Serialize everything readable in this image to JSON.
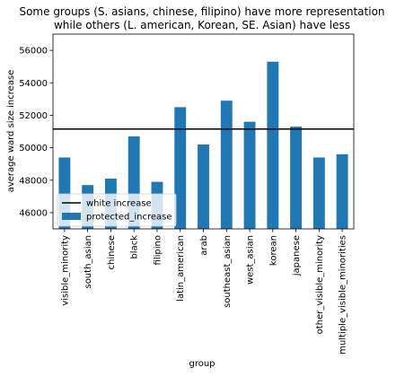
{
  "chart_data": {
    "type": "bar",
    "title_lines": [
      "Some groups (S. asians, chinese, filipino) have more representation",
      "while others (L. american, Korean, SE. Asian) have less"
    ],
    "xlabel": "group",
    "ylabel": "average ward size increase",
    "categories": [
      "visible_minority",
      "south_asian",
      "chinese",
      "black",
      "filipino",
      "latin_american",
      "arab",
      "southeast_asian",
      "west_asian",
      "korean",
      "japanese",
      "other_visible_minority",
      "multiple_visible_minorities"
    ],
    "series": [
      {
        "name": "protected_increase",
        "values": [
          49400,
          47700,
          48100,
          50700,
          47900,
          52500,
          50200,
          52900,
          51600,
          55300,
          51300,
          49400,
          49600
        ]
      }
    ],
    "reference_line": {
      "name": "white increase",
      "value": 51150
    },
    "ylim": [
      45000,
      57000
    ],
    "yticks": [
      46000,
      48000,
      50000,
      52000,
      54000,
      56000
    ],
    "legend_position": "lower-left",
    "grid": false,
    "colors": {
      "bar": "#1f77b4",
      "reference_line": "#000000"
    }
  }
}
